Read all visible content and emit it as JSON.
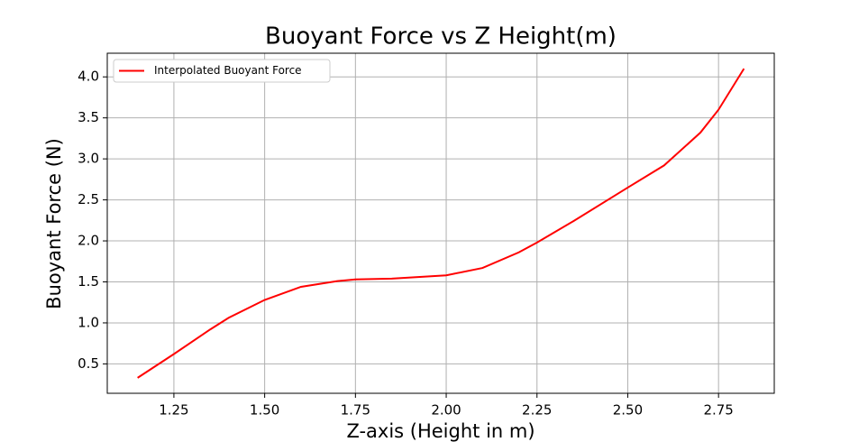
{
  "chart_data": {
    "type": "line",
    "title": "Buoyant Force vs Z Height(m)",
    "x_label": "Z-axis (Height in m)",
    "y_label": "Buoyant Force (N)",
    "x": [
      1.15,
      1.25,
      1.35,
      1.4,
      1.5,
      1.6,
      1.7,
      1.75,
      1.85,
      2.0,
      2.1,
      2.2,
      2.25,
      2.35,
      2.5,
      2.6,
      2.7,
      2.75,
      2.82
    ],
    "series": [
      {
        "name": "Interpolated Buoyant Force",
        "color": "#ff0000",
        "values": [
          0.33,
          0.62,
          0.92,
          1.06,
          1.28,
          1.44,
          1.51,
          1.53,
          1.54,
          1.58,
          1.67,
          1.86,
          1.98,
          2.24,
          2.65,
          2.92,
          3.32,
          3.6,
          4.1
        ]
      }
    ],
    "xlim": [
      1.0665,
      2.9035
    ],
    "xticks": [
      {
        "value": 1.25,
        "label": "1.25"
      },
      {
        "value": 1.5,
        "label": "1.50"
      },
      {
        "value": 1.75,
        "label": "1.75"
      },
      {
        "value": 2,
        "label": "2.00"
      },
      {
        "value": 2.25,
        "label": "2.25"
      },
      {
        "value": 2.5,
        "label": "2.50"
      },
      {
        "value": 2.75,
        "label": "2.75"
      }
    ],
    "ylim": [
      0.1415,
      4.2885
    ],
    "yticks": [
      0.5,
      {
        "value": 1,
        "label": "1.0"
      },
      1.5,
      {
        "value": 2,
        "label": "2.0"
      },
      2.5,
      {
        "value": 3,
        "label": "3.0"
      },
      3.5,
      {
        "value": 4,
        "label": "4.0"
      }
    ],
    "grid": true,
    "legend": "upper left"
  }
}
